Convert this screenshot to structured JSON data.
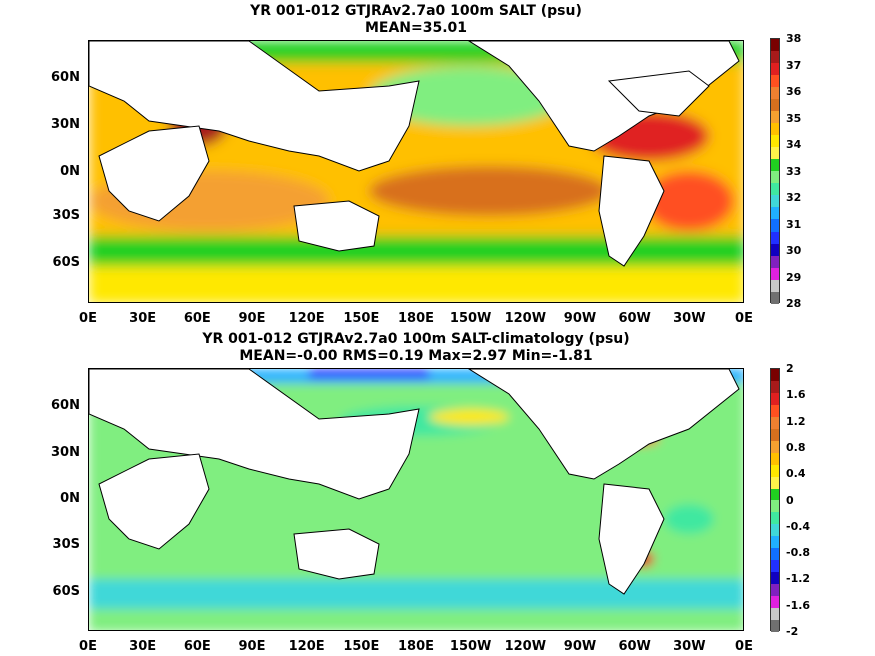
{
  "chart_data": [
    {
      "type": "heatmap",
      "title": "YR 001-012 GTJRAv2.7a0 100m SALT (psu)",
      "subtitle": "MEAN=35.01",
      "x_ticks": [
        "0E",
        "30E",
        "60E",
        "90E",
        "120E",
        "150E",
        "180E",
        "150W",
        "120W",
        "90W",
        "60W",
        "30W",
        "0E"
      ],
      "y_ticks": [
        "60N",
        "30N",
        "0N",
        "30S",
        "60S"
      ],
      "colorbar": {
        "labels": [
          "38",
          "37",
          "36",
          "35",
          "34",
          "33",
          "32",
          "31",
          "30",
          "29",
          "28"
        ],
        "colors": [
          "#7a0000",
          "#a81a1a",
          "#e02020",
          "#ff5020",
          "#f08030",
          "#d8701e",
          "#f4a030",
          "#ffc000",
          "#ffe800",
          "#fff44a",
          "#20d020",
          "#80ee80",
          "#40e8a0",
          "#40d8d8",
          "#20b0ff",
          "#1070ff",
          "#2030ff",
          "#1000c0",
          "#8020c0",
          "#e020e0",
          "#c8c8c8",
          "#707070"
        ]
      }
    },
    {
      "type": "heatmap",
      "title": "YR 001-012 GTJRAv2.7a0 100m SALT-climatology (psu)",
      "subtitle": "MEAN=-0.00   RMS=0.19   Max=2.97   Min=-1.81",
      "x_ticks": [
        "0E",
        "30E",
        "60E",
        "90E",
        "120E",
        "150E",
        "180E",
        "150W",
        "120W",
        "90W",
        "60W",
        "30W",
        "0E"
      ],
      "y_ticks": [
        "60N",
        "30N",
        "0N",
        "30S",
        "60S"
      ],
      "colorbar": {
        "labels": [
          "2",
          "1.6",
          "1.2",
          "0.8",
          "0.4",
          "0",
          "-0.4",
          "-0.8",
          "-1.2",
          "-1.6",
          "-2"
        ],
        "colors": [
          "#7a0000",
          "#a81a1a",
          "#e02020",
          "#ff5020",
          "#f08030",
          "#d8701e",
          "#f4a030",
          "#ffc000",
          "#ffe800",
          "#fff44a",
          "#20d020",
          "#80ee80",
          "#40e8a0",
          "#40d8d8",
          "#20b0ff",
          "#1070ff",
          "#2030ff",
          "#1000c0",
          "#8020c0",
          "#e020e0",
          "#c8c8c8",
          "#707070"
        ]
      }
    }
  ]
}
